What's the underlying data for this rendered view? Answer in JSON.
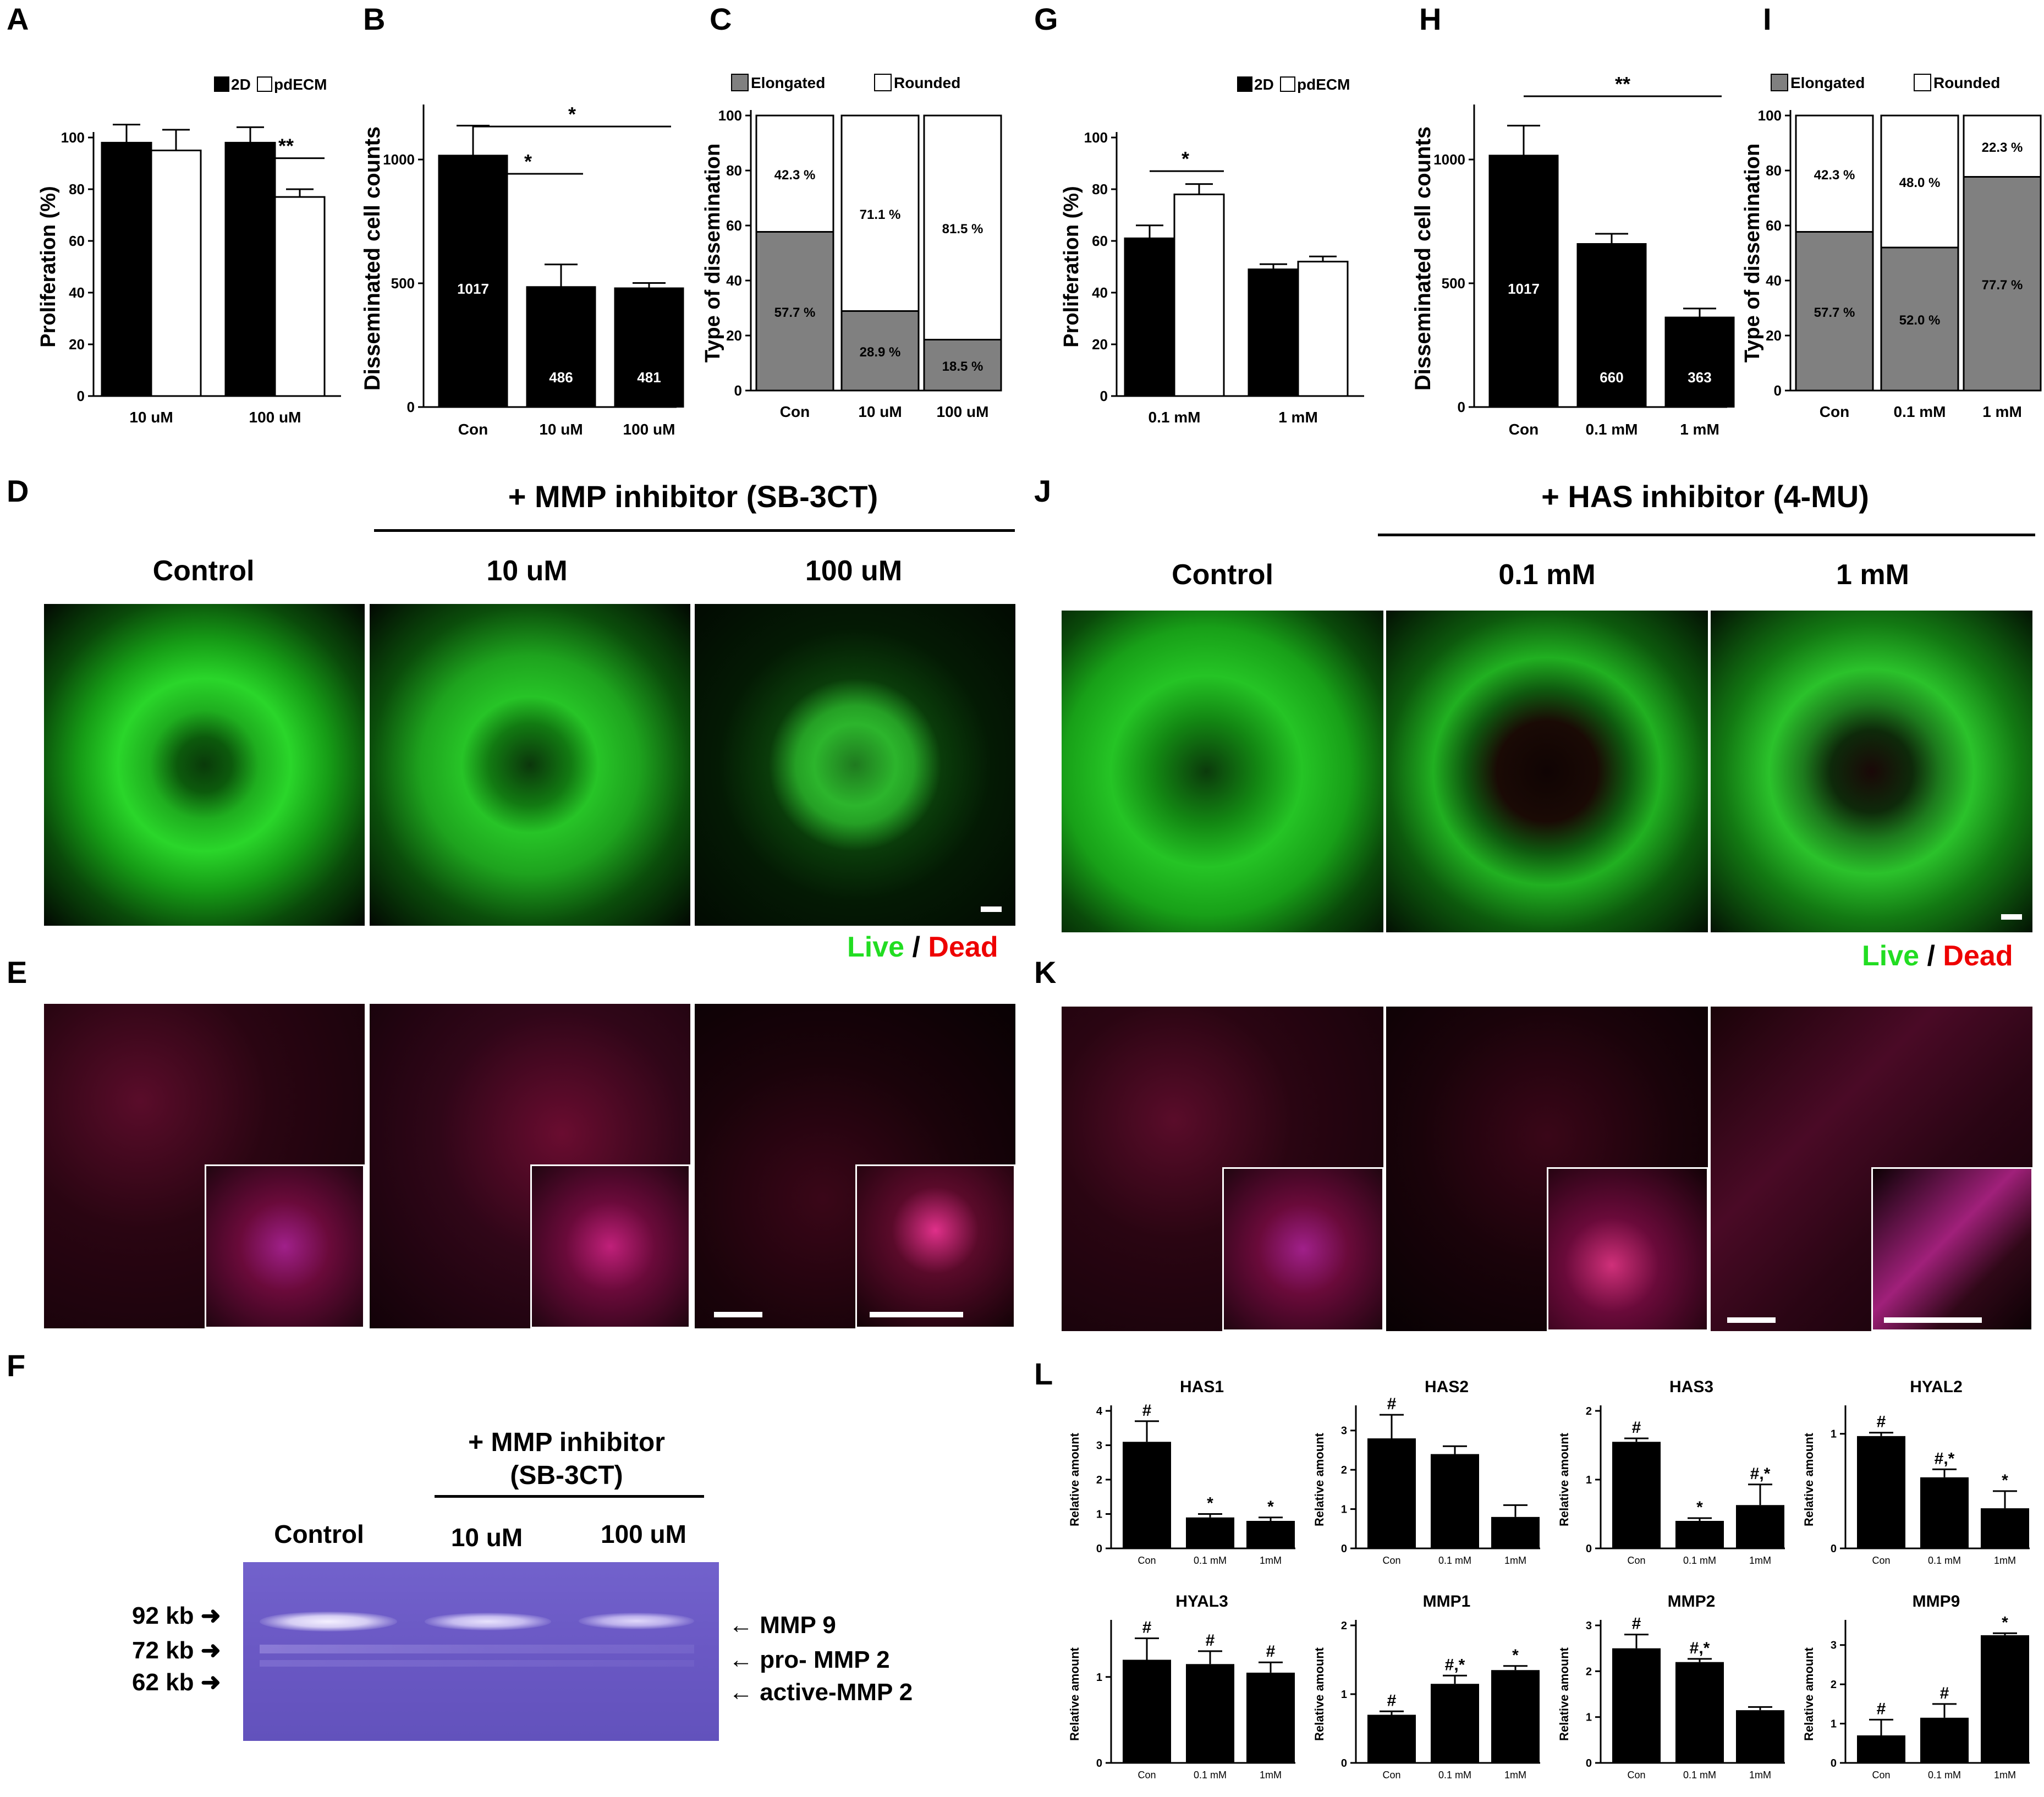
{
  "panels": {
    "A": "A",
    "B": "B",
    "C": "C",
    "D": "D",
    "E": "E",
    "F": "F",
    "G": "G",
    "H": "H",
    "I": "I",
    "J": "J",
    "K": "K",
    "L": "L"
  },
  "left_header": {
    "title": "+ MMP inhibitor (SB-3CT)",
    "col1": "Control",
    "col2": "10 uM",
    "col3": "100 uM"
  },
  "right_header": {
    "title": "+ HAS inhibitor (4-MU)",
    "col1": "Control",
    "col2": "0.1 mM",
    "col3": "1 mM"
  },
  "live_dead": {
    "live": "Live",
    "sep": "/",
    "dead": "Dead"
  },
  "colors": {
    "live": "#00cc00",
    "dead": "#ee0000",
    "bar_filled": "#000000",
    "bar_open": "#ffffff",
    "elongated": "#808080",
    "rounded": "#ffffff",
    "gel": "#6a5ac6"
  },
  "zymography": {
    "inhibitor_line1": "+ MMP inhibitor",
    "inhibitor_line2": "(SB-3CT)",
    "lanes": [
      "Control",
      "10 uM",
      "100 uM"
    ],
    "markers": [
      {
        "label": "92 kb"
      },
      {
        "label": "72 kb"
      },
      {
        "label": "62 kb"
      }
    ],
    "bands": [
      {
        "label": "MMP 9"
      },
      {
        "label": "pro- MMP 2"
      },
      {
        "label": "active-MMP 2"
      }
    ]
  },
  "chart_data": [
    {
      "panel": "A",
      "type": "bar",
      "ylabel": "Proliferation (%)",
      "categories": [
        "10 uM",
        "100 uM"
      ],
      "ylim": [
        0,
        100
      ],
      "yticks": [
        0,
        20,
        40,
        60,
        80,
        100
      ],
      "legend": [
        "2D",
        "pdECM"
      ],
      "series": [
        {
          "name": "2D",
          "values": [
            98,
            98
          ],
          "errors": [
            7,
            6
          ]
        },
        {
          "name": "pdECM",
          "values": [
            95,
            77
          ],
          "errors": [
            8,
            3
          ]
        }
      ],
      "annotations": [
        "**"
      ]
    },
    {
      "panel": "B",
      "type": "bar",
      "ylabel": "Disseminated cell counts",
      "categories": [
        "Con",
        "10 uM",
        "100 uM"
      ],
      "ylim": [
        0,
        1200
      ],
      "yticks": [
        0,
        500,
        1000
      ],
      "values": [
        1017,
        486,
        481
      ],
      "errors": [
        120,
        90,
        20
      ],
      "data_labels": [
        "1017",
        "486",
        "481"
      ],
      "annotations": [
        "*",
        "*"
      ]
    },
    {
      "panel": "C",
      "type": "bar",
      "ylabel": "Type of dissemination",
      "categories": [
        "Con",
        "10 uM",
        "100 uM"
      ],
      "ylim": [
        0,
        100
      ],
      "yticks": [
        0,
        20,
        40,
        60,
        80,
        100
      ],
      "legend": [
        "Elongated",
        "Rounded"
      ],
      "series": [
        {
          "name": "Elongated",
          "values": [
            57.7,
            28.9,
            18.5
          ],
          "labels": [
            "57.7 %",
            "28.9 %",
            "18.5 %"
          ]
        },
        {
          "name": "Rounded",
          "values": [
            42.3,
            71.1,
            81.5
          ],
          "labels": [
            "42.3 %",
            "71.1 %",
            "81.5 %"
          ]
        }
      ]
    },
    {
      "panel": "G",
      "type": "bar",
      "ylabel": "Proliferation (%)",
      "categories": [
        "0.1 mM",
        "1 mM"
      ],
      "ylim": [
        0,
        100
      ],
      "yticks": [
        0,
        20,
        40,
        60,
        80,
        100
      ],
      "legend": [
        "2D",
        "pdECM"
      ],
      "series": [
        {
          "name": "2D",
          "values": [
            61,
            49
          ],
          "errors": [
            5,
            2
          ]
        },
        {
          "name": "pdECM",
          "values": [
            78,
            52
          ],
          "errors": [
            4,
            2
          ]
        }
      ],
      "annotations": [
        "*"
      ]
    },
    {
      "panel": "H",
      "type": "bar",
      "ylabel": "Disseminated cell counts",
      "categories": [
        "Con",
        "0.1 mM",
        "1 mM"
      ],
      "ylim": [
        0,
        1200
      ],
      "yticks": [
        0,
        500,
        1000
      ],
      "values": [
        1017,
        660,
        363
      ],
      "errors": [
        120,
        40,
        35
      ],
      "data_labels": [
        "1017",
        "660",
        "363"
      ],
      "annotations": [
        "**"
      ]
    },
    {
      "panel": "I",
      "type": "bar",
      "ylabel": "Type of dissemination",
      "categories": [
        "Con",
        "0.1 mM",
        "1 mM"
      ],
      "ylim": [
        0,
        100
      ],
      "yticks": [
        0,
        20,
        40,
        60,
        80,
        100
      ],
      "legend": [
        "Elongated",
        "Rounded"
      ],
      "series": [
        {
          "name": "Elongated",
          "values": [
            57.7,
            52.0,
            77.7
          ],
          "labels": [
            "57.7 %",
            "52.0 %",
            "77.7 %"
          ]
        },
        {
          "name": "Rounded",
          "values": [
            42.3,
            48.0,
            22.3
          ],
          "labels": [
            "42.3 %",
            "48.0 %",
            "22.3 %"
          ]
        }
      ]
    },
    {
      "panel": "L",
      "name": "HAS1",
      "type": "bar",
      "ylabel": "Relative amount",
      "categories": [
        "Con",
        "0.1 mM",
        "1mM"
      ],
      "ylim": [
        0,
        4
      ],
      "yticks": [
        0,
        1,
        2,
        3,
        4
      ],
      "values": [
        3.1,
        0.9,
        0.8
      ],
      "errors": [
        0.6,
        0.1,
        0.1
      ],
      "marks": [
        "#",
        "*",
        "*"
      ]
    },
    {
      "panel": "L",
      "name": "HAS2",
      "type": "bar",
      "ylabel": "Relative amount",
      "categories": [
        "Con",
        "0.1 mM",
        "1mM"
      ],
      "ylim": [
        0,
        3.5
      ],
      "yticks": [
        0,
        1,
        2,
        3
      ],
      "values": [
        2.8,
        2.4,
        0.8
      ],
      "errors": [
        0.6,
        0.2,
        0.3
      ],
      "marks": [
        "#",
        "",
        ""
      ]
    },
    {
      "panel": "L",
      "name": "HAS3",
      "type": "bar",
      "ylabel": "Relative amount",
      "categories": [
        "Con",
        "0.1 mM",
        "1mM"
      ],
      "ylim": [
        0,
        2
      ],
      "yticks": [
        0,
        1,
        2
      ],
      "values": [
        1.55,
        0.4,
        0.63
      ],
      "errors": [
        0.05,
        0.04,
        0.3
      ],
      "marks": [
        "#",
        "*",
        "#,*"
      ]
    },
    {
      "panel": "L",
      "name": "HYAL2",
      "type": "bar",
      "ylabel": "Relative amount",
      "categories": [
        "Con",
        "0.1 mM",
        "1mM"
      ],
      "ylim": [
        0,
        1.2
      ],
      "yticks": [
        0,
        1
      ],
      "values": [
        0.98,
        0.62,
        0.35
      ],
      "errors": [
        0.03,
        0.07,
        0.15
      ],
      "marks": [
        "#",
        "#,*",
        "*"
      ]
    },
    {
      "panel": "L",
      "name": "HYAL3",
      "type": "bar",
      "ylabel": "Relative amount",
      "categories": [
        "Con",
        "0.1 mM",
        "1mM"
      ],
      "ylim": [
        0,
        1.6
      ],
      "yticks": [
        0,
        1
      ],
      "values": [
        1.2,
        1.15,
        1.05
      ],
      "errors": [
        0.25,
        0.15,
        0.12
      ],
      "marks": [
        "#",
        "#",
        "#"
      ]
    },
    {
      "panel": "L",
      "name": "MMP1",
      "type": "bar",
      "ylabel": "Relative amount",
      "categories": [
        "Con",
        "0.1 mM",
        "1mM"
      ],
      "ylim": [
        0,
        2
      ],
      "yticks": [
        0,
        1,
        2
      ],
      "values": [
        0.7,
        1.15,
        1.35
      ],
      "errors": [
        0.05,
        0.12,
        0.06
      ],
      "marks": [
        "#",
        "#,*",
        "*"
      ]
    },
    {
      "panel": "L",
      "name": "MMP2",
      "type": "bar",
      "ylabel": "Relative amount",
      "categories": [
        "Con",
        "0.1 mM",
        "1mM"
      ],
      "ylim": [
        0,
        3
      ],
      "yticks": [
        0,
        1,
        2,
        3
      ],
      "values": [
        2.5,
        2.2,
        1.15
      ],
      "errors": [
        0.3,
        0.07,
        0.07
      ],
      "marks": [
        "#",
        "#,*",
        ""
      ]
    },
    {
      "panel": "L",
      "name": "MMP9",
      "type": "bar",
      "ylabel": "Relative amount",
      "categories": [
        "Con",
        "0.1 mM",
        "1mM"
      ],
      "ylim": [
        0,
        3.5
      ],
      "yticks": [
        0,
        1,
        2,
        3
      ],
      "values": [
        0.7,
        1.15,
        3.25
      ],
      "errors": [
        0.4,
        0.35,
        0.05
      ],
      "marks": [
        "#",
        "#",
        "*"
      ]
    }
  ]
}
